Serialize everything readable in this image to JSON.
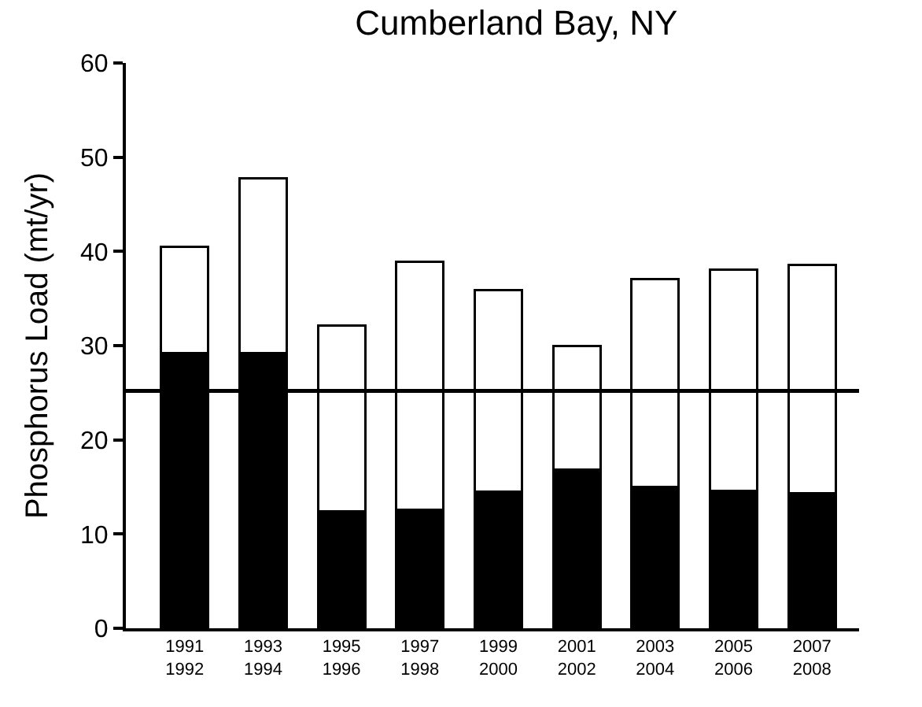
{
  "chart_data": {
    "type": "bar",
    "title": "Cumberland Bay, NY",
    "ylabel": "Phosphorus Load (mt/yr)",
    "categories": [
      "1991\n1992",
      "1993\n1994",
      "1995\n1996",
      "1997\n1998",
      "1999\n2000",
      "2001\n2002",
      "2003\n2004",
      "2005\n2006",
      "2007\n2008"
    ],
    "stacked": true,
    "series": [
      {
        "color": "#000000",
        "values": [
          29.2,
          29.2,
          12.4,
          12.6,
          14.5,
          16.8,
          15.0,
          14.6,
          14.3
        ]
      },
      {
        "color": "#ffffff",
        "values": [
          11.3,
          18.6,
          19.7,
          26.3,
          21.4,
          13.2,
          22.1,
          23.5,
          24.3
        ]
      }
    ],
    "ylim": [
      0,
      60
    ],
    "yticks": [
      0,
      10,
      20,
      30,
      40,
      50,
      60
    ],
    "ref_lines": [
      {
        "axis": "y",
        "value": 25.2,
        "color": "#000000",
        "line_style": "solid"
      }
    ]
  }
}
